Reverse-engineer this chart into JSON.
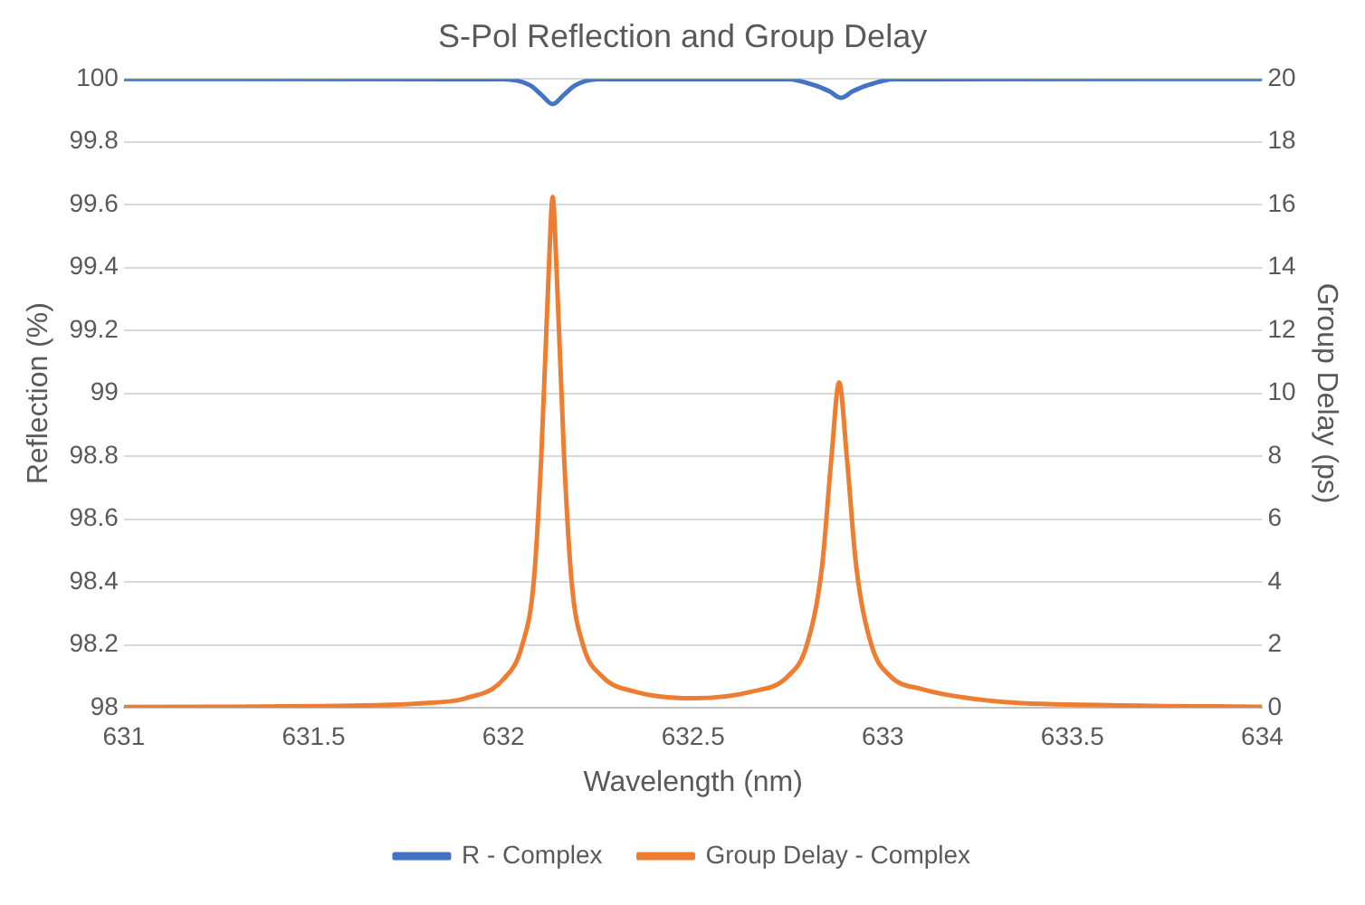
{
  "chart_data": {
    "type": "line",
    "title": "S-Pol Reflection and Group Delay",
    "xlabel": "Wavelength (nm)",
    "ylabel": "Reflection (%)",
    "y2label": "Group Delay (ps)",
    "xlim": [
      631,
      634
    ],
    "xticks": [
      631,
      631.5,
      632,
      632.5,
      633,
      633.5,
      634
    ],
    "ylim": [
      98,
      100
    ],
    "yticks": [
      98,
      {
        "value": 98.2,
        "label": "98.2"
      },
      {
        "value": 98.4,
        "label": "98.4"
      },
      {
        "value": 98.6,
        "label": "98.6"
      },
      {
        "value": 98.8,
        "label": "98.8"
      },
      99,
      {
        "value": 99.2,
        "label": "99.2"
      },
      {
        "value": 99.4,
        "label": "99.4"
      },
      {
        "value": 99.6,
        "label": "99.6"
      },
      {
        "value": 99.8,
        "label": "99.8"
      },
      100
    ],
    "y2lim": [
      0,
      20
    ],
    "y2ticks": [
      0,
      2,
      4,
      6,
      8,
      10,
      12,
      14,
      16,
      18,
      20
    ],
    "grid": "y",
    "legend": "bottom",
    "marker": "none",
    "line_style": "solid",
    "series": [
      {
        "name": "R - Complex",
        "color": "#4472c4",
        "x": [
          631,
          632,
          632.07,
          632.1,
          632.13,
          632.16,
          632.19,
          632.25,
          632.75,
          632.82,
          632.86,
          632.89,
          632.92,
          632.96,
          633.03,
          634
        ],
        "values": [
          100,
          99.999,
          99.98,
          99.95,
          99.92,
          99.95,
          99.98,
          99.999,
          99.999,
          99.98,
          99.96,
          99.94,
          99.96,
          99.98,
          99.999,
          100
        ]
      },
      {
        "name": "Group Delay - Complex",
        "color": "#ed7d31",
        "axis": "y2",
        "x": [
          631,
          631.5,
          631.8,
          631.9,
          632,
          632.05,
          632.08,
          632.1,
          632.12,
          632.13,
          632.14,
          632.16,
          632.18,
          632.21,
          632.26,
          632.35,
          632.5,
          632.65,
          632.75,
          632.8,
          632.84,
          632.865,
          632.885,
          632.905,
          632.93,
          632.97,
          633.02,
          633.1,
          633.3,
          633.6,
          634
        ],
        "values": [
          0.02,
          0.05,
          0.15,
          0.3,
          0.9,
          2,
          4,
          8,
          14,
          16.25,
          14,
          8,
          4,
          2,
          1,
          0.5,
          0.3,
          0.5,
          1,
          2,
          4.5,
          8,
          10.35,
          8,
          4.5,
          2,
          1,
          0.6,
          0.2,
          0.08,
          0.03
        ]
      }
    ]
  }
}
